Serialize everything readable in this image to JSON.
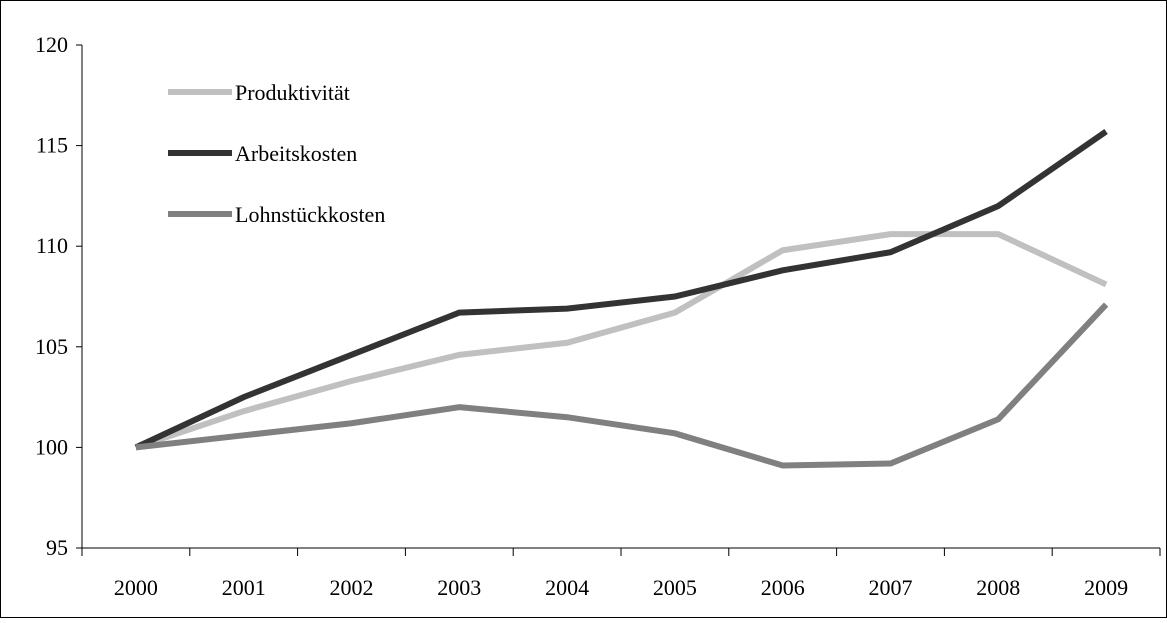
{
  "chart_data": {
    "type": "line",
    "title": "",
    "xlabel": "",
    "ylabel": "",
    "categories": [
      "2000",
      "2001",
      "2002",
      "2003",
      "2004",
      "2005",
      "2006",
      "2007",
      "2008",
      "2009"
    ],
    "ylim": [
      95,
      120
    ],
    "yticks": [
      95,
      100,
      105,
      110,
      115,
      120
    ],
    "grid": false,
    "legend_position": "top-left",
    "series": [
      {
        "name": "Produktivität",
        "color": "#c0c0c0",
        "values": [
          100,
          101.8,
          103.3,
          104.6,
          105.2,
          106.7,
          109.8,
          110.6,
          110.6,
          108.1
        ]
      },
      {
        "name": "Arbeitskosten",
        "color": "#333333",
        "values": [
          100,
          102.5,
          104.6,
          106.7,
          106.9,
          107.5,
          108.8,
          109.7,
          112.0,
          115.7
        ]
      },
      {
        "name": "Lohnstückkosten",
        "color": "#808080",
        "values": [
          100,
          100.6,
          101.2,
          102.0,
          101.5,
          100.7,
          99.1,
          99.2,
          101.4,
          107.1
        ]
      }
    ]
  }
}
